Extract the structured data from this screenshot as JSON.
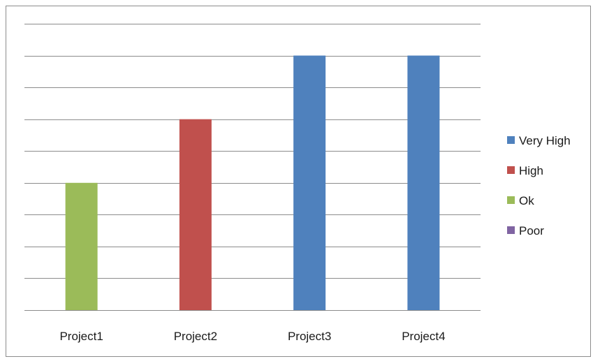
{
  "chart_data": {
    "type": "bar",
    "categories": [
      "Project1",
      "Project2",
      "Project3",
      "Project4"
    ],
    "series": [
      {
        "name": "Very High",
        "color": "#4f81bd",
        "values": [
          null,
          null,
          8,
          8
        ]
      },
      {
        "name": "High",
        "color": "#c0504d",
        "values": [
          null,
          6,
          null,
          null
        ]
      },
      {
        "name": "Ok",
        "color": "#9bbb59",
        "values": [
          4,
          null,
          null,
          null
        ]
      },
      {
        "name": "Poor",
        "color": "#8064a2",
        "values": [
          null,
          null,
          null,
          null
        ]
      }
    ],
    "ylim": [
      0,
      9
    ],
    "grid": true,
    "legend": "right",
    "gridline_color": "#8c8c8c"
  }
}
